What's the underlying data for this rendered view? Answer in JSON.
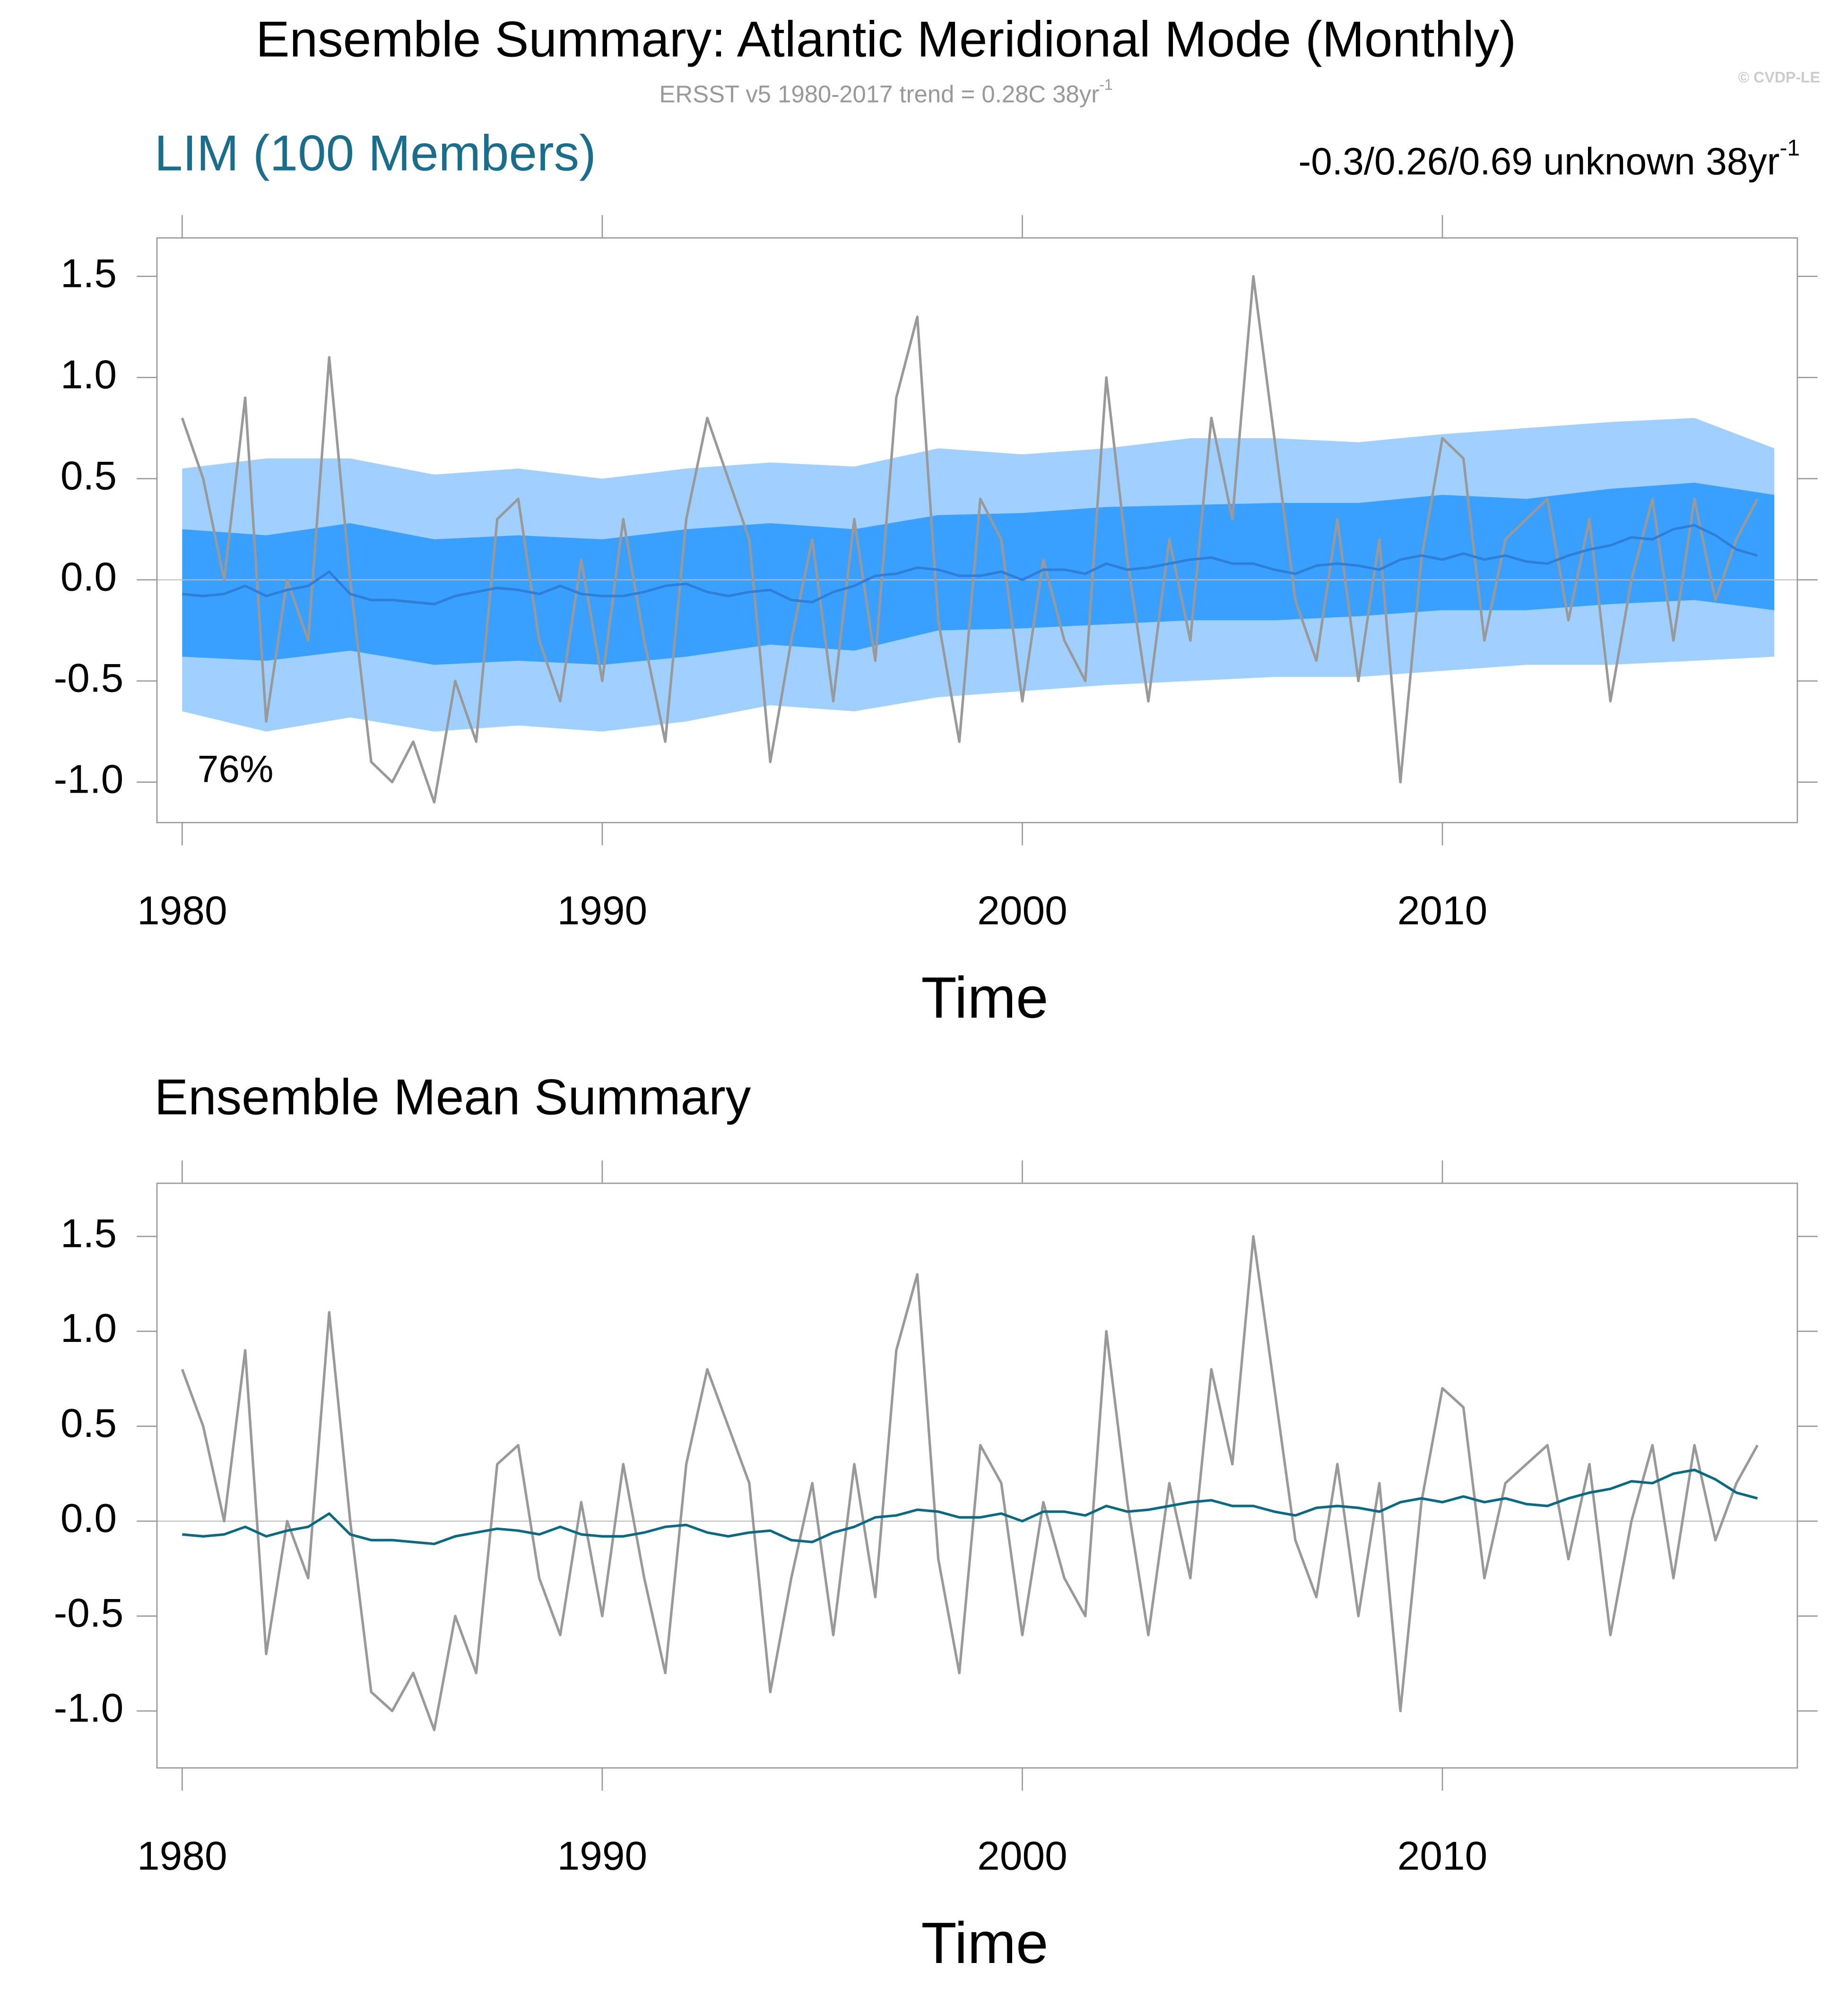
{
  "chart_data": [
    {
      "type": "line",
      "title": "Ensemble Summary: Atlantic Meridional Mode (Monthly)",
      "subtitle": "ERSST v5 1980-2017 trend = 0.28C 38yr",
      "subtitle_superscript": "-1",
      "copyright": "© CVDP-LE",
      "left_label": "LIM (100 Members)",
      "right_label": "-0.3/0.26/0.69 unknown 38yr",
      "right_label_superscript": "-1",
      "annotation": "76%",
      "xlabel": "Time",
      "xlim": [
        1979.4,
        2018.45
      ],
      "ylim": [
        -1.2,
        1.69
      ],
      "xticks": [
        1980,
        1990,
        2000,
        2010
      ],
      "yticks": [
        {
          "value": -1,
          "label": "-1.0"
        },
        -0.5,
        {
          "value": 0,
          "label": "0.0"
        },
        0.5,
        {
          "value": 1,
          "label": "1.0"
        },
        1.5
      ],
      "zero_line": true,
      "x": [
        1980,
        1980.5,
        1981,
        1981.5,
        1982,
        1982.5,
        1983,
        1983.5,
        1984,
        1984.5,
        1985,
        1985.5,
        1986,
        1986.5,
        1987,
        1987.5,
        1988,
        1988.5,
        1989,
        1989.5,
        1990,
        1990.5,
        1991,
        1991.5,
        1992,
        1992.5,
        1993,
        1993.5,
        1994,
        1994.5,
        1995,
        1995.5,
        1996,
        1996.5,
        1997,
        1997.5,
        1998,
        1998.5,
        1999,
        1999.5,
        2000,
        2000.5,
        2001,
        2001.5,
        2002,
        2002.5,
        2003,
        2003.5,
        2004,
        2004.5,
        2005,
        2005.5,
        2006,
        2006.5,
        2007,
        2007.5,
        2008,
        2008.5,
        2009,
        2009.5,
        2010,
        2010.5,
        2011,
        2011.5,
        2012,
        2012.5,
        2013,
        2013.5,
        2014,
        2014.5,
        2015,
        2015.5,
        2016,
        2016.5,
        2017,
        2017.5
      ],
      "bands": {
        "x": [
          1980,
          1982,
          1984,
          1986,
          1988,
          1990,
          1992,
          1994,
          1996,
          1998,
          2000,
          2002,
          2004,
          2006,
          2008,
          2010,
          2012,
          2014,
          2016,
          2017.9
        ],
        "items": [
          {
            "color": "#9fd0ff",
            "upper": [
              0.55,
              0.6,
              0.6,
              0.52,
              0.55,
              0.5,
              0.55,
              0.58,
              0.56,
              0.65,
              0.62,
              0.65,
              0.7,
              0.7,
              0.68,
              0.72,
              0.75,
              0.78,
              0.8,
              0.65
            ],
            "lower": [
              -0.65,
              -0.75,
              -0.68,
              -0.75,
              -0.72,
              -0.75,
              -0.7,
              -0.62,
              -0.65,
              -0.58,
              -0.55,
              -0.52,
              -0.5,
              -0.48,
              -0.48,
              -0.45,
              -0.42,
              -0.42,
              -0.4,
              -0.38
            ]
          },
          {
            "color": "#3aa0ff",
            "upper": [
              0.25,
              0.22,
              0.28,
              0.2,
              0.22,
              0.2,
              0.25,
              0.28,
              0.25,
              0.32,
              0.33,
              0.36,
              0.37,
              0.38,
              0.38,
              0.42,
              0.4,
              0.45,
              0.48,
              0.42
            ],
            "lower": [
              -0.38,
              -0.4,
              -0.35,
              -0.42,
              -0.4,
              -0.42,
              -0.38,
              -0.32,
              -0.35,
              -0.25,
              -0.24,
              -0.22,
              -0.2,
              -0.2,
              -0.18,
              -0.15,
              -0.15,
              -0.12,
              -0.1,
              -0.15
            ]
          }
        ]
      },
      "series": [
        {
          "color": "#999999",
          "values": [
            0.8,
            0.5,
            0.0,
            0.9,
            -0.7,
            0.0,
            -0.3,
            1.1,
            0.0,
            -0.9,
            -1.0,
            -0.8,
            -1.1,
            -0.5,
            -0.8,
            0.3,
            0.4,
            -0.3,
            -0.6,
            0.1,
            -0.5,
            0.3,
            -0.3,
            -0.8,
            0.3,
            0.8,
            0.5,
            0.2,
            -0.9,
            -0.3,
            0.2,
            -0.6,
            0.3,
            -0.4,
            0.9,
            1.3,
            -0.2,
            -0.8,
            0.4,
            0.2,
            -0.6,
            0.1,
            -0.3,
            -0.5,
            1.0,
            0.1,
            -0.6,
            0.2,
            -0.3,
            0.8,
            0.3,
            1.5,
            0.7,
            -0.1,
            -0.4,
            0.3,
            -0.5,
            0.2,
            -1.0,
            0.1,
            0.7,
            0.6,
            -0.3,
            0.2,
            0.3,
            0.4,
            -0.2,
            0.3,
            -0.6,
            0.0,
            0.4,
            -0.3,
            0.4,
            -0.1,
            0.2,
            0.4
          ]
        },
        {
          "color": "#2f7fd8",
          "values": [
            -0.07,
            -0.08,
            -0.07,
            -0.03,
            -0.08,
            -0.05,
            -0.03,
            0.04,
            -0.07,
            -0.1,
            -0.1,
            -0.11,
            -0.12,
            -0.08,
            -0.06,
            -0.04,
            -0.05,
            -0.07,
            -0.03,
            -0.07,
            -0.08,
            -0.08,
            -0.06,
            -0.03,
            -0.02,
            -0.06,
            -0.08,
            -0.06,
            -0.05,
            -0.1,
            -0.11,
            -0.06,
            -0.03,
            0.02,
            0.03,
            0.06,
            0.05,
            0.02,
            0.02,
            0.04,
            0.0,
            0.05,
            0.05,
            0.03,
            0.08,
            0.05,
            0.06,
            0.08,
            0.1,
            0.11,
            0.08,
            0.08,
            0.05,
            0.03,
            0.07,
            0.08,
            0.07,
            0.05,
            0.1,
            0.12,
            0.1,
            0.13,
            0.1,
            0.12,
            0.09,
            0.08,
            0.12,
            0.15,
            0.17,
            0.21,
            0.2,
            0.25,
            0.27,
            0.22,
            0.15,
            0.12
          ]
        }
      ]
    },
    {
      "type": "line",
      "left_label": "Ensemble Mean Summary",
      "xlabel": "Time",
      "xlim": [
        1979.4,
        2018.45
      ],
      "ylim": [
        -1.3,
        1.78
      ],
      "xticks": [
        1980,
        1990,
        2000,
        2010
      ],
      "yticks": [
        {
          "value": -1,
          "label": "-1.0"
        },
        -0.5,
        {
          "value": 0,
          "label": "0.0"
        },
        0.5,
        {
          "value": 1,
          "label": "1.0"
        },
        1.5
      ],
      "zero_line": true,
      "x": [
        1980,
        1980.5,
        1981,
        1981.5,
        1982,
        1982.5,
        1983,
        1983.5,
        1984,
        1984.5,
        1985,
        1985.5,
        1986,
        1986.5,
        1987,
        1987.5,
        1988,
        1988.5,
        1989,
        1989.5,
        1990,
        1990.5,
        1991,
        1991.5,
        1992,
        1992.5,
        1993,
        1993.5,
        1994,
        1994.5,
        1995,
        1995.5,
        1996,
        1996.5,
        1997,
        1997.5,
        1998,
        1998.5,
        1999,
        1999.5,
        2000,
        2000.5,
        2001,
        2001.5,
        2002,
        2002.5,
        2003,
        2003.5,
        2004,
        2004.5,
        2005,
        2005.5,
        2006,
        2006.5,
        2007,
        2007.5,
        2008,
        2008.5,
        2009,
        2009.5,
        2010,
        2010.5,
        2011,
        2011.5,
        2012,
        2012.5,
        2013,
        2013.5,
        2014,
        2014.5,
        2015,
        2015.5,
        2016,
        2016.5,
        2017,
        2017.5
      ],
      "series": [
        {
          "color": "#999999",
          "values": [
            0.8,
            0.5,
            0.0,
            0.9,
            -0.7,
            0.0,
            -0.3,
            1.1,
            0.0,
            -0.9,
            -1.0,
            -0.8,
            -1.1,
            -0.5,
            -0.8,
            0.3,
            0.4,
            -0.3,
            -0.6,
            0.1,
            -0.5,
            0.3,
            -0.3,
            -0.8,
            0.3,
            0.8,
            0.5,
            0.2,
            -0.9,
            -0.3,
            0.2,
            -0.6,
            0.3,
            -0.4,
            0.9,
            1.3,
            -0.2,
            -0.8,
            0.4,
            0.2,
            -0.6,
            0.1,
            -0.3,
            -0.5,
            1.0,
            0.1,
            -0.6,
            0.2,
            -0.3,
            0.8,
            0.3,
            1.5,
            0.7,
            -0.1,
            -0.4,
            0.3,
            -0.5,
            0.2,
            -1.0,
            0.1,
            0.7,
            0.6,
            -0.3,
            0.2,
            0.3,
            0.4,
            -0.2,
            0.3,
            -0.6,
            0.0,
            0.4,
            -0.3,
            0.4,
            -0.1,
            0.2,
            0.4
          ]
        },
        {
          "color": "#0a6a84",
          "values": [
            -0.07,
            -0.08,
            -0.07,
            -0.03,
            -0.08,
            -0.05,
            -0.03,
            0.04,
            -0.07,
            -0.1,
            -0.1,
            -0.11,
            -0.12,
            -0.08,
            -0.06,
            -0.04,
            -0.05,
            -0.07,
            -0.03,
            -0.07,
            -0.08,
            -0.08,
            -0.06,
            -0.03,
            -0.02,
            -0.06,
            -0.08,
            -0.06,
            -0.05,
            -0.1,
            -0.11,
            -0.06,
            -0.03,
            0.02,
            0.03,
            0.06,
            0.05,
            0.02,
            0.02,
            0.04,
            0.0,
            0.05,
            0.05,
            0.03,
            0.08,
            0.05,
            0.06,
            0.08,
            0.1,
            0.11,
            0.08,
            0.08,
            0.05,
            0.03,
            0.07,
            0.08,
            0.07,
            0.05,
            0.1,
            0.12,
            0.1,
            0.13,
            0.1,
            0.12,
            0.09,
            0.08,
            0.12,
            0.15,
            0.17,
            0.21,
            0.2,
            0.25,
            0.27,
            0.22,
            0.15,
            0.12
          ]
        }
      ]
    }
  ]
}
